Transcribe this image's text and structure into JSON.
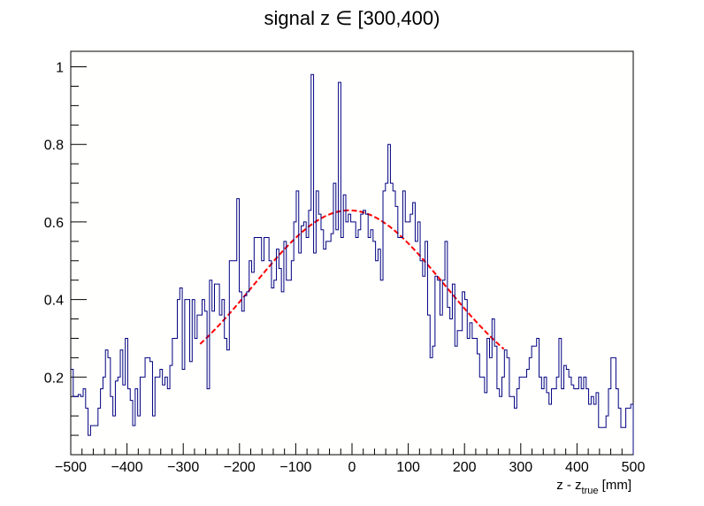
{
  "chart_data": {
    "type": "histogram",
    "title": "signal z ∈ [300,400)",
    "xlabel_main": "z - z",
    "xlabel_sub": "true",
    "xlabel_unit": " [mm]",
    "ylabel": "",
    "xlim": [
      -500,
      500
    ],
    "ylim": [
      0,
      1.0
    ],
    "x_ticks": [
      -500,
      -400,
      -300,
      -200,
      -100,
      0,
      100,
      200,
      300,
      400,
      500
    ],
    "x_tick_labels": [
      "−500",
      "−400",
      "−300",
      "−200",
      "−100",
      "0",
      "100",
      "200",
      "300",
      "400",
      "500"
    ],
    "y_ticks": [
      0.2,
      0.4,
      0.6,
      0.8,
      1.0
    ],
    "y_tick_labels": [
      "0.2",
      "0.4",
      "0.6",
      "0.8",
      "1"
    ],
    "bin_width": 6.25,
    "bins_start": -500,
    "series": [
      {
        "kind": "histogram",
        "color": "#000080",
        "values": [
          0.22,
          0.15,
          0.15,
          0.155,
          0.15,
          0.17,
          0.12,
          0.05,
          0.075,
          0.075,
          0.075,
          0.12,
          0.17,
          0.2,
          0.27,
          0.25,
          0.15,
          0.1,
          0.19,
          0.2,
          0.27,
          0.18,
          0.3,
          0.17,
          0.14,
          0.075,
          0.17,
          0.1,
          0.2,
          0.2,
          0.25,
          0.25,
          0.24,
          0.1,
          0.2,
          0.2,
          0.22,
          0.18,
          0.2,
          0.17,
          0.23,
          0.3,
          0.3,
          0.4,
          0.43,
          0.22,
          0.4,
          0.4,
          0.24,
          0.4,
          0.3,
          0.36,
          0.36,
          0.4,
          0.37,
          0.17,
          0.45,
          0.37,
          0.44,
          0.44,
          0.36,
          0.4,
          0.3,
          0.27,
          0.5,
          0.5,
          0.5,
          0.66,
          0.42,
          0.37,
          0.41,
          0.42,
          0.5,
          0.47,
          0.56,
          0.56,
          0.56,
          0.5,
          0.56,
          0.56,
          0.5,
          0.43,
          0.45,
          0.53,
          0.48,
          0.42,
          0.55,
          0.45,
          0.45,
          0.5,
          0.6,
          0.68,
          0.52,
          0.59,
          0.6,
          0.56,
          0.63,
          0.98,
          0.52,
          0.68,
          0.62,
          0.58,
          0.53,
          0.55,
          0.55,
          0.57,
          0.7,
          0.58,
          0.96,
          0.56,
          0.67,
          0.6,
          0.62,
          0.6,
          0.6,
          0.56,
          0.58,
          0.62,
          0.63,
          0.62,
          0.56,
          0.58,
          0.55,
          0.5,
          0.53,
          0.45,
          0.68,
          0.7,
          0.8,
          0.7,
          0.68,
          0.64,
          0.56,
          0.56,
          0.68,
          0.6,
          0.6,
          0.62,
          0.65,
          0.55,
          0.6,
          0.5,
          0.46,
          0.55,
          0.36,
          0.25,
          0.28,
          0.46,
          0.45,
          0.36,
          0.45,
          0.55,
          0.38,
          0.35,
          0.44,
          0.28,
          0.32,
          0.32,
          0.42,
          0.4,
          0.3,
          0.34,
          0.3,
          0.3,
          0.26,
          0.2,
          0.2,
          0.16,
          0.3,
          0.25,
          0.35,
          0.28,
          0.17,
          0.15,
          0.2,
          0.27,
          0.25,
          0.15,
          0.15,
          0.12,
          0.17,
          0.2,
          0.2,
          0.2,
          0.22,
          0.25,
          0.28,
          0.28,
          0.3,
          0.2,
          0.17,
          0.2,
          0.16,
          0.13,
          0.17,
          0.17,
          0.2,
          0.3,
          0.17,
          0.23,
          0.22,
          0.2,
          0.18,
          0.17,
          0.17,
          0.2,
          0.17,
          0.2,
          0.17,
          0.13,
          0.15,
          0.13,
          0.16,
          0.07,
          0.07,
          0.07,
          0.1,
          0.17,
          0.25,
          0.25,
          0.17,
          0.12,
          0.07,
          0.07,
          0.12,
          0.12,
          0.13
        ]
      },
      {
        "kind": "fit",
        "color": "#ff0000",
        "style": "dashed",
        "x_range": [
          -270,
          270
        ],
        "amplitude": 0.63,
        "mean": -5,
        "sigma": 170,
        "constant": 0.14
      }
    ],
    "grid": false,
    "legend": "none"
  }
}
